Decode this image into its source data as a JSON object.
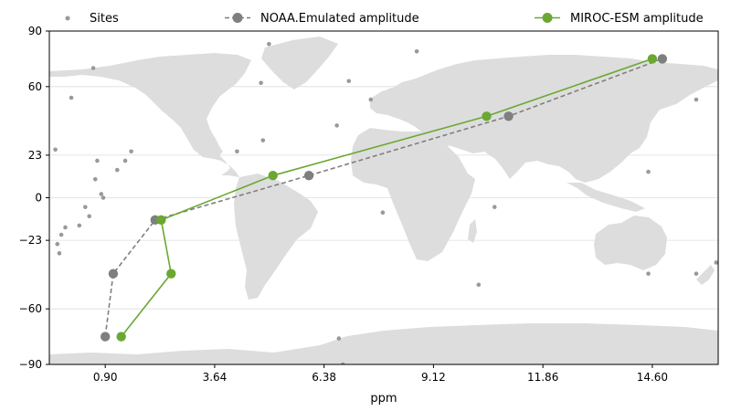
{
  "chart_data": {
    "type": "scatter",
    "title": "",
    "xlabel": "ppm",
    "ylabel": "",
    "xlim": [
      -0.5,
      16.25
    ],
    "ylim": [
      -90,
      90
    ],
    "x_ticks": [
      0.9,
      3.64,
      6.38,
      9.12,
      11.86,
      14.6
    ],
    "x_tick_labels": [
      "0.90",
      "3.64",
      "6.38",
      "9.12",
      "11.86",
      "14.60"
    ],
    "y_ticks": [
      -90,
      -60,
      -23,
      0,
      23,
      60,
      90
    ],
    "y_tick_labels": [
      "−90",
      "−60",
      "−23",
      "0",
      "23",
      "60",
      "90"
    ],
    "grid": "horizontal",
    "legend_position": "top",
    "background": "world-map",
    "colors": {
      "land": "#dddddd",
      "sites": "#999999",
      "noaa": "#7f7f7f",
      "miroc": "#6aa832",
      "grid": "#dddddd"
    },
    "series": [
      {
        "name": "Sites",
        "style": "points",
        "x": [
          -0.35,
          -0.25,
          0.05,
          0.7,
          0.85,
          0.8,
          0.6,
          1.2,
          1.4,
          1.55,
          0.25,
          -0.1,
          -0.2,
          -0.3,
          0.5,
          0.4,
          0.65,
          4.2,
          4.85,
          5.0,
          4.8,
          6.7,
          7.0,
          7.55,
          7.85,
          8.7,
          10.25,
          10.65,
          14.5,
          14.5,
          15.7,
          15.7,
          16.2,
          6.75,
          6.85
        ],
        "y": [
          26,
          -30,
          54,
          20,
          0,
          2,
          70,
          15,
          20,
          25,
          -15,
          -16,
          -20,
          -25,
          -10,
          -5,
          10,
          25,
          31,
          83,
          62,
          39,
          63,
          53,
          -8,
          79,
          -47,
          -5,
          14,
          -41,
          -41,
          53,
          -35,
          -76,
          -90
        ]
      },
      {
        "name": "NOAA.Emulated amplitude",
        "style": "dashed-line-markers",
        "x": [
          0.9,
          1.1,
          2.15,
          6.0,
          11.0,
          14.85
        ],
        "y": [
          -75,
          -41,
          -12,
          12,
          44,
          75
        ]
      },
      {
        "name": "MIROC-ESM amplitude",
        "style": "line-markers",
        "x": [
          1.3,
          2.55,
          2.3,
          5.1,
          10.45,
          14.6
        ],
        "y": [
          -75,
          -41,
          -12,
          12,
          44,
          75
        ]
      }
    ]
  }
}
